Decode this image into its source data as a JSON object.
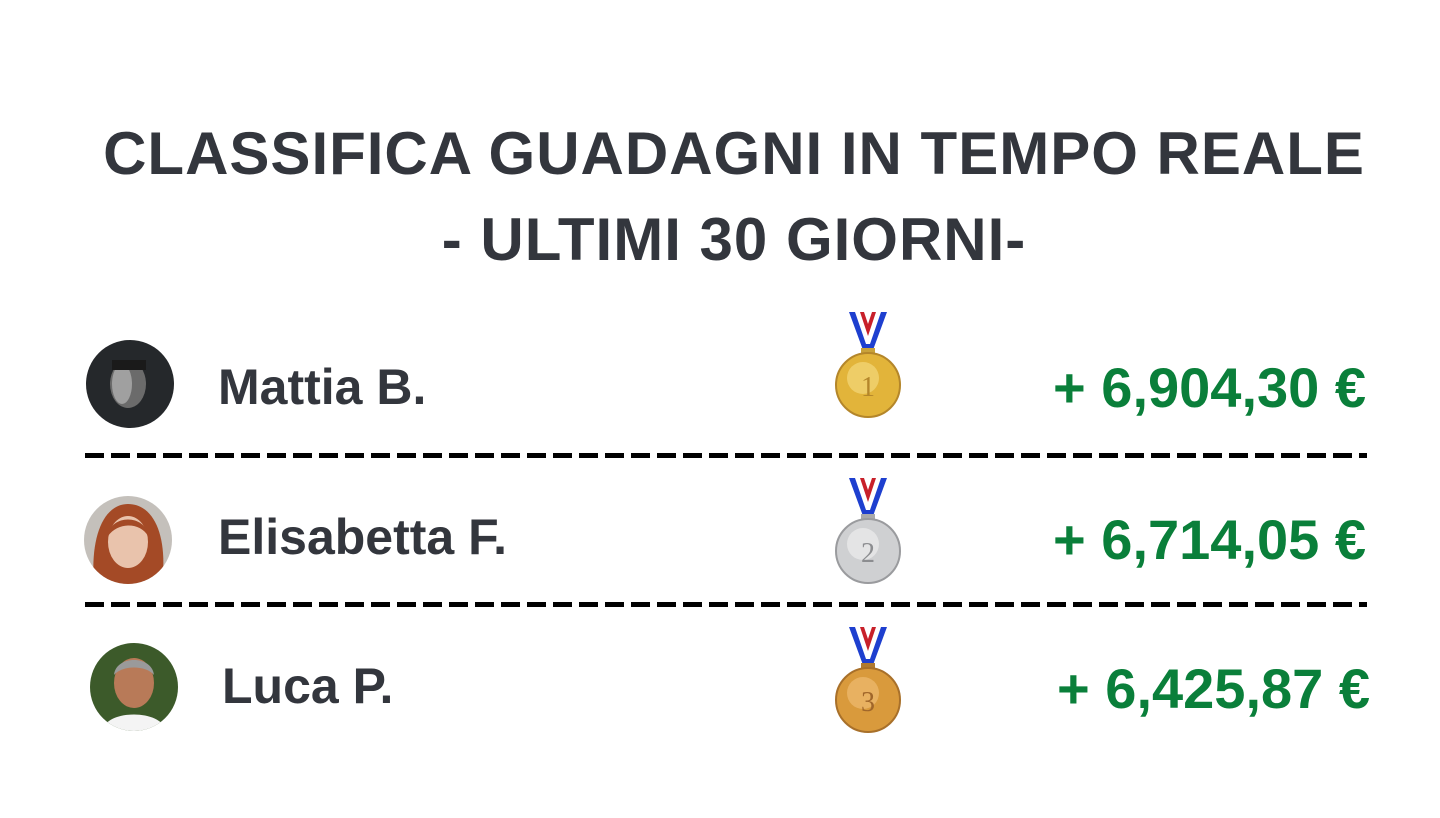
{
  "header": {
    "title_line1": "CLASSIFICA GUADAGNI IN TEMPO REALE",
    "title_line2": "- ULTIMI 30 GIORNI-"
  },
  "colors": {
    "title": "#33363d",
    "amount": "#0a7f3a",
    "divider": "#000000"
  },
  "leaderboard": [
    {
      "rank": "1",
      "name": "Mattia B.",
      "amount": "+ 6,904,30 €",
      "medal": "gold-medal-icon"
    },
    {
      "rank": "2",
      "name": "Elisabetta F.",
      "amount": "+ 6,714,05 €",
      "medal": "silver-medal-icon"
    },
    {
      "rank": "3",
      "name": "Luca P.",
      "amount": "+ 6,425,87 €",
      "medal": "bronze-medal-icon"
    }
  ]
}
